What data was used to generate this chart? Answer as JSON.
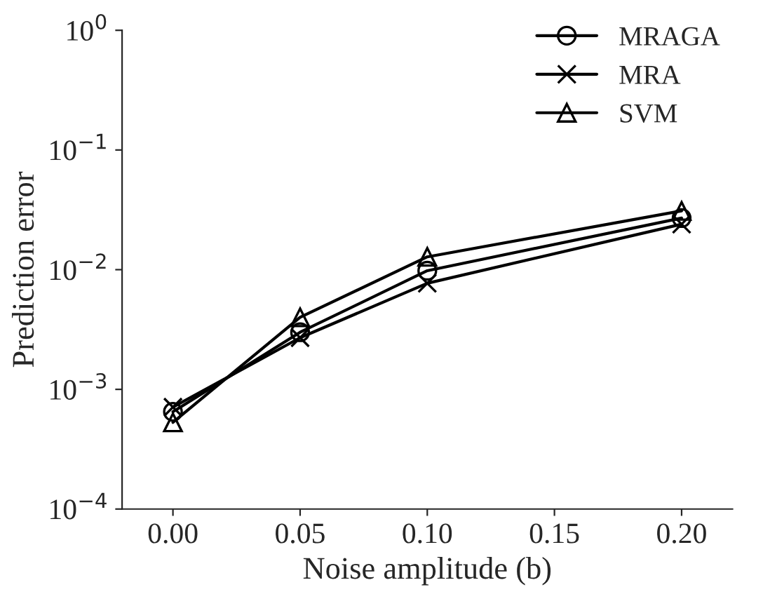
{
  "chart_data": {
    "type": "line",
    "xlabel": "Noise amplitude (b)",
    "ylabel": "Prediction error",
    "x": [
      0.0,
      0.05,
      0.1,
      0.2
    ],
    "series": [
      {
        "name": "MRAGA",
        "color": "#000000",
        "marker": "circle",
        "values": [
          0.00065,
          0.003,
          0.0098,
          0.027
        ]
      },
      {
        "name": "MRA",
        "color": "#000000",
        "marker": "cross",
        "values": [
          0.00071,
          0.0027,
          0.0077,
          0.024
        ]
      },
      {
        "name": "SVM",
        "color": "#000000",
        "marker": "triangle",
        "values": [
          0.00053,
          0.004,
          0.0128,
          0.031
        ]
      }
    ],
    "log": "y",
    "xlim": [
      -0.02,
      0.22
    ],
    "ylim": [
      0.0001,
      1
    ],
    "xticks": [
      {
        "value": 0.0,
        "label": "0.00"
      },
      {
        "value": 0.05,
        "label": "0.05"
      },
      {
        "value": 0.1,
        "label": "0.10"
      },
      {
        "value": 0.15,
        "label": "0.15"
      },
      {
        "value": 0.2,
        "label": "0.20"
      }
    ],
    "yticks": [
      {
        "value": 0.0001,
        "label": "10$^{−4}$"
      },
      {
        "value": 0.001,
        "label": "10$^{−3}$"
      },
      {
        "value": 0.01,
        "label": "10$^{−2}$"
      },
      {
        "value": 0.1,
        "label": "10$^{−1}$"
      },
      {
        "value": 1,
        "label": "10$^{0}$"
      }
    ],
    "grid": false,
    "legend": "top right",
    "line_style": "solid"
  }
}
